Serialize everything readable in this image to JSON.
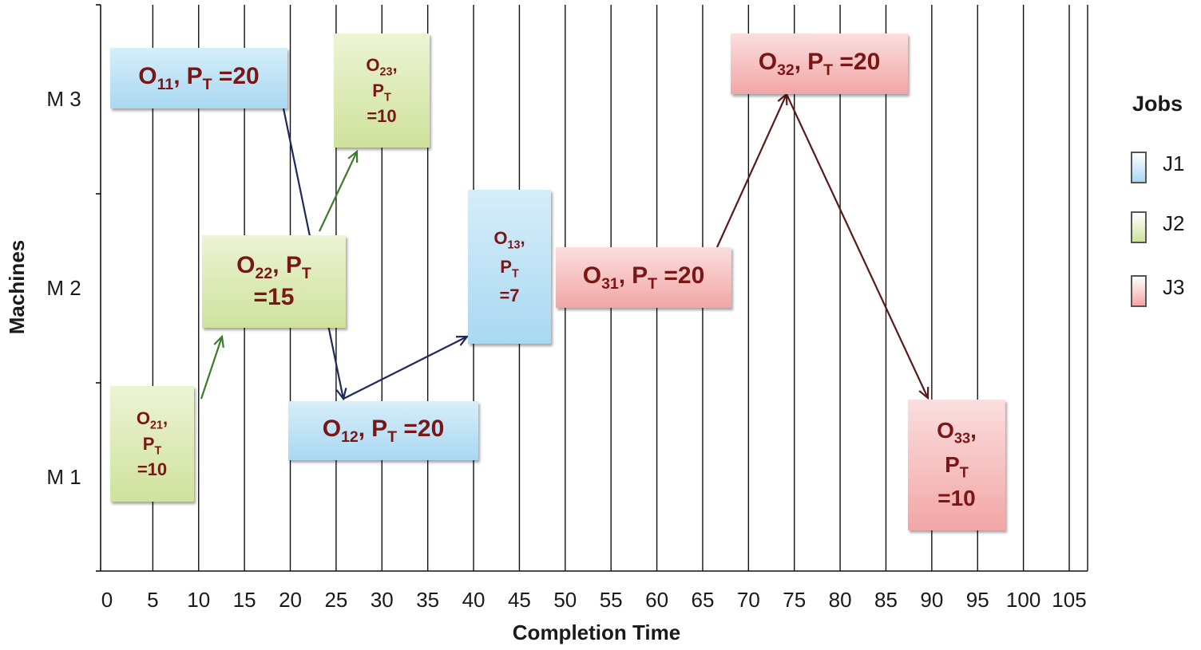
{
  "chart_data": {
    "type": "gantt",
    "xlabel": "Completion Time",
    "ylabel": "Machines",
    "xlim": [
      0,
      105
    ],
    "x_ticks": [
      0,
      5,
      10,
      15,
      20,
      25,
      30,
      35,
      40,
      45,
      50,
      55,
      60,
      65,
      70,
      75,
      80,
      85,
      90,
      95,
      100,
      105
    ],
    "machines": [
      "M 1",
      "M 2",
      "M 3"
    ],
    "grid": "vertical",
    "legend": {
      "title": "Jobs",
      "placement": "right",
      "items": [
        {
          "job": "J1",
          "color": "#a9d8f2"
        },
        {
          "job": "J2",
          "color": "#cfe29c"
        },
        {
          "job": "J3",
          "color": "#f2a6a6"
        }
      ]
    },
    "operations": [
      {
        "id": "O11",
        "job": "J1",
        "machine": "M 3",
        "start": 0,
        "end": 20,
        "pt": 20,
        "label": "O11, PT =20"
      },
      {
        "id": "O12",
        "job": "J1",
        "machine": "M 1",
        "start": 20,
        "end": 40,
        "pt": 20,
        "label": "O12, PT =20"
      },
      {
        "id": "O13",
        "job": "J1",
        "machine": "M 2",
        "start": 40,
        "end": 47,
        "pt": 7,
        "label": "O13, PT =7"
      },
      {
        "id": "O21",
        "job": "J2",
        "machine": "M 1",
        "start": 0,
        "end": 10,
        "pt": 10,
        "label": "O21, PT =10"
      },
      {
        "id": "O22",
        "job": "J2",
        "machine": "M 2",
        "start": 10,
        "end": 25,
        "pt": 15,
        "label": "O22, PT =15"
      },
      {
        "id": "O23",
        "job": "J2",
        "machine": "M 3",
        "start": 25,
        "end": 35,
        "pt": 10,
        "label": "O23, PT =10"
      },
      {
        "id": "O31",
        "job": "J3",
        "machine": "M 2",
        "start": 47,
        "end": 67,
        "pt": 20,
        "label": "O31, PT =20"
      },
      {
        "id": "O32",
        "job": "J3",
        "machine": "M 3",
        "start": 67,
        "end": 87,
        "pt": 20,
        "label": "O32, PT =20"
      },
      {
        "id": "O33",
        "job": "J3",
        "machine": "M 1",
        "start": 87,
        "end": 97,
        "pt": 10,
        "label": "O33, PT =10"
      }
    ],
    "precedence_arrows": [
      {
        "from": "O21",
        "to": "O22",
        "job": "J2"
      },
      {
        "from": "O22",
        "to": "O23",
        "job": "J2"
      },
      {
        "from": "O11",
        "to": "O12",
        "job": "J1"
      },
      {
        "from": "O12",
        "to": "O13",
        "job": "J1"
      },
      {
        "from": "O31",
        "to": "O32",
        "job": "J3"
      },
      {
        "from": "O32",
        "to": "O33",
        "job": "J3"
      }
    ],
    "colors": {
      "J1": "#a9d8f2",
      "J2": "#cfe29c",
      "J3": "#f2a6a6",
      "text": "#7b1616",
      "arrow_J1": "#1f2a5c",
      "arrow_J2": "#3d7a2a",
      "arrow_J3": "#5a1a1a"
    }
  }
}
